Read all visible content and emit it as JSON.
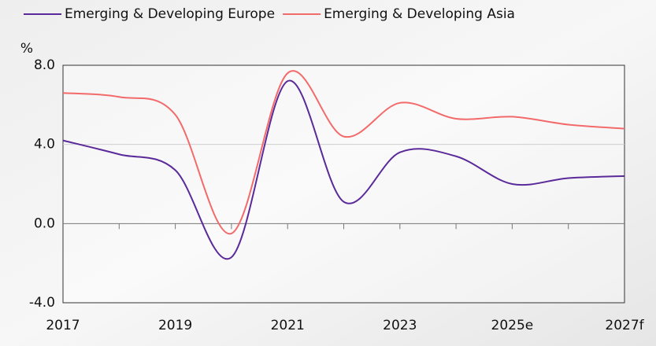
{
  "chart_data": {
    "type": "line",
    "y_label": "%",
    "categories": [
      "2017",
      null,
      "2019",
      null,
      "2021",
      null,
      "2023",
      null,
      "2025e",
      null,
      "2027f"
    ],
    "series": [
      {
        "name": "Emerging & Developing Europe",
        "color": "#5b2a9a",
        "values": [
          4.2,
          3.5,
          2.7,
          -1.7,
          7.2,
          1.1,
          3.6,
          3.4,
          2.0,
          2.3,
          2.4
        ]
      },
      {
        "name": "Emerging & Developing Asia",
        "color": "#f26a6a",
        "values": [
          6.6,
          6.4,
          5.5,
          -0.5,
          7.6,
          4.4,
          6.1,
          5.3,
          5.4,
          5.0,
          4.8
        ]
      }
    ],
    "ylim": [
      -4,
      8
    ],
    "yticks": [
      {
        "value": -4,
        "label": "-4.0"
      },
      {
        "value": 0,
        "label": "0.0"
      },
      {
        "value": 4,
        "label": "4.0"
      },
      {
        "value": 8,
        "label": "8.0"
      }
    ],
    "grid": true
  }
}
